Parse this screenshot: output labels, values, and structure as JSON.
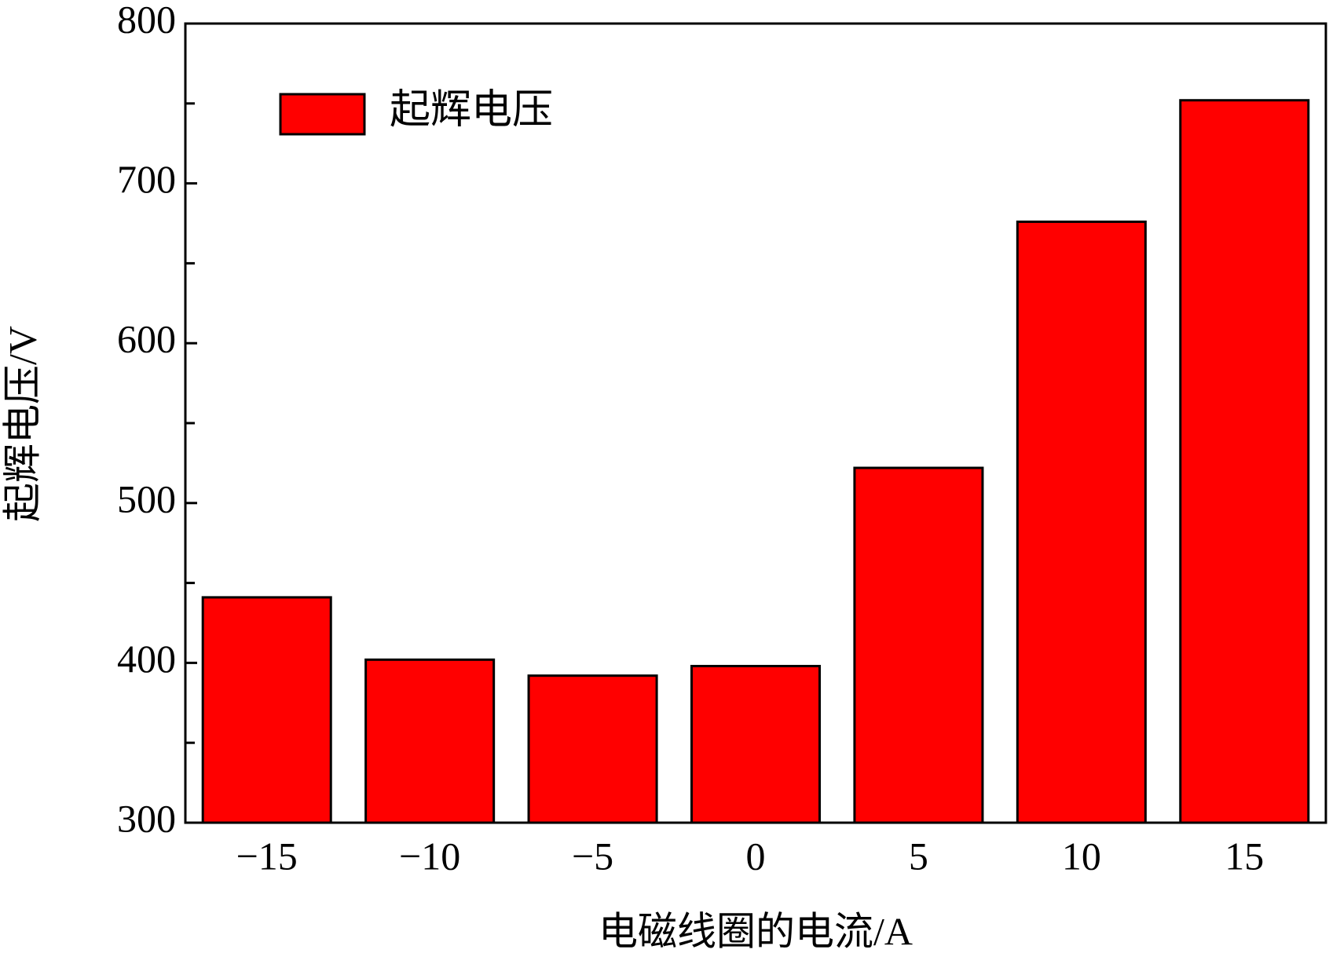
{
  "chart_data": {
    "type": "bar",
    "categories": [
      "−15",
      "−10",
      "−5",
      "0",
      "5",
      "10",
      "15"
    ],
    "series": [
      {
        "name": "起辉电压",
        "color": "#ff0000",
        "values": [
          441,
          402,
          392,
          398,
          522,
          676,
          752
        ]
      }
    ],
    "xlabel": "电磁线圈的电流/A",
    "ylabel": "起辉电压/V",
    "ylim": [
      300,
      800
    ],
    "yticks": [
      300,
      400,
      500,
      600,
      700,
      800
    ],
    "yminorticks": [
      350,
      450,
      550,
      650,
      750
    ],
    "legend": "upper left"
  }
}
